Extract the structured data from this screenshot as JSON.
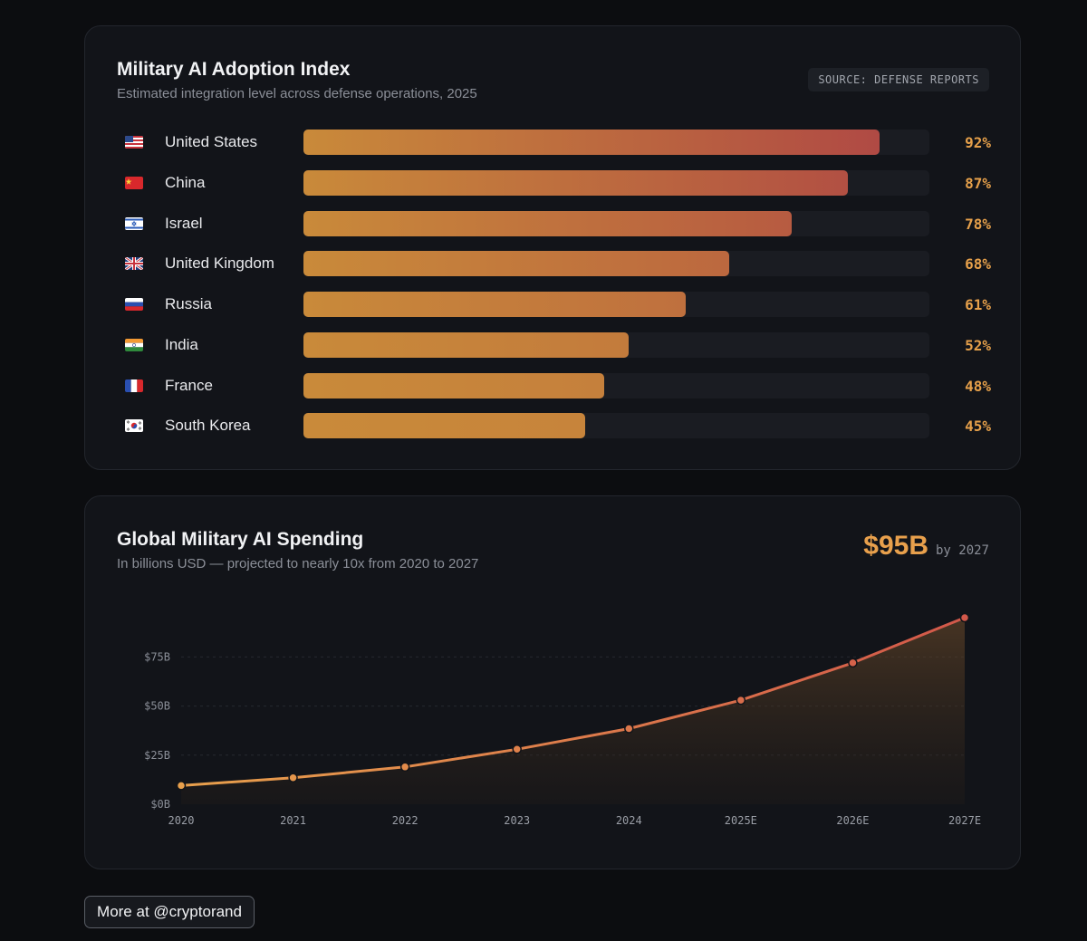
{
  "adoption": {
    "title": "Military AI Adoption Index",
    "subtitle": "Estimated integration level across defense operations, 2025",
    "source": "SOURCE: DEFENSE REPORTS",
    "rows": [
      {
        "country": "United States",
        "flag": "us-flag-icon",
        "value": 92,
        "label": "92%"
      },
      {
        "country": "China",
        "flag": "cn-flag-icon",
        "value": 87,
        "label": "87%"
      },
      {
        "country": "Israel",
        "flag": "il-flag-icon",
        "value": 78,
        "label": "78%"
      },
      {
        "country": "United Kingdom",
        "flag": "gb-flag-icon",
        "value": 68,
        "label": "68%"
      },
      {
        "country": "Russia",
        "flag": "ru-flag-icon",
        "value": 61,
        "label": "61%"
      },
      {
        "country": "India",
        "flag": "in-flag-icon",
        "value": 52,
        "label": "52%"
      },
      {
        "country": "France",
        "flag": "fr-flag-icon",
        "value": 48,
        "label": "48%"
      },
      {
        "country": "South Korea",
        "flag": "kr-flag-icon",
        "value": 45,
        "label": "45%"
      }
    ]
  },
  "spending": {
    "title": "Global Military AI Spending",
    "subtitle": "In billions USD — projected to nearly 10x from 2020 to 2027",
    "headline_value": "$95B",
    "headline_note": "by 2027"
  },
  "footer": {
    "more_label": "More at @cryptorand"
  },
  "colors": {
    "accent": "#e8a04c",
    "bar_start": "#c98a3a",
    "bar_end": "#b04a44",
    "line": "#e07a45"
  },
  "chart_data": [
    {
      "type": "bar",
      "orientation": "horizontal",
      "title": "Military AI Adoption Index",
      "subtitle": "Estimated integration level across defense operations, 2025",
      "categories": [
        "United States",
        "China",
        "Israel",
        "United Kingdom",
        "Russia",
        "India",
        "France",
        "South Korea"
      ],
      "values": [
        92,
        87,
        78,
        68,
        61,
        52,
        48,
        45
      ],
      "xlim": [
        0,
        100
      ],
      "unit": "%"
    },
    {
      "type": "area",
      "title": "Global Military AI Spending",
      "subtitle": "In billions USD — projected to nearly 10x from 2020 to 2027",
      "x": [
        "2020",
        "2021",
        "2022",
        "2023",
        "2024",
        "2025E",
        "2026E",
        "2027E"
      ],
      "values": [
        9.5,
        13.5,
        19,
        28,
        38.5,
        53,
        72,
        95
      ],
      "ylim": [
        0,
        95
      ],
      "yticks": [
        0,
        25,
        50,
        75
      ],
      "ytick_labels": [
        "$0B",
        "$25B",
        "$50B",
        "$75B"
      ],
      "grid": true
    }
  ]
}
